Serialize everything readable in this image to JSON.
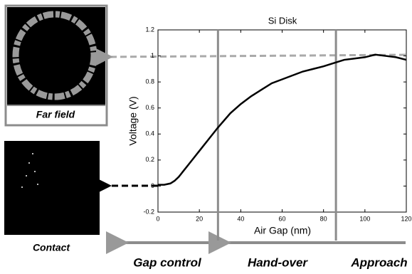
{
  "chart_data": {
    "type": "line",
    "title": "Si Disk",
    "x_label": "Air Gap (nm)",
    "y_label": "Voltage (V)",
    "x": [
      0,
      3,
      6,
      8,
      10,
      12,
      15,
      18,
      20,
      25,
      29,
      35,
      40,
      45,
      50,
      55,
      60,
      65,
      70,
      75,
      80,
      86,
      90,
      95,
      100,
      105,
      110,
      115,
      120
    ],
    "series": [
      {
        "color": "#000000",
        "values": [
          0.01,
          0.01,
          0.02,
          0.04,
          0.07,
          0.11,
          0.17,
          0.23,
          0.27,
          0.37,
          0.45,
          0.56,
          0.63,
          0.69,
          0.74,
          0.79,
          0.82,
          0.85,
          0.88,
          0.9,
          0.92,
          0.95,
          0.97,
          0.98,
          0.99,
          1.01,
          1.0,
          0.99,
          0.97
        ]
      }
    ],
    "xlim": [
      0,
      120
    ],
    "ylim": [
      -0.2,
      1.2
    ],
    "xticks": [
      0,
      20,
      40,
      60,
      80,
      100,
      120
    ],
    "yticks": [
      -0.2,
      0,
      0.2,
      0.4,
      0.6,
      0.8,
      1,
      1.2
    ],
    "region_boundaries": [
      29,
      86
    ],
    "boundary_color": "#8c8c8c",
    "image_labels": {
      "far_field": "Far field",
      "contact": "Contact"
    },
    "regions": [
      "Gap control",
      "Hand-over",
      "Approach"
    ]
  }
}
